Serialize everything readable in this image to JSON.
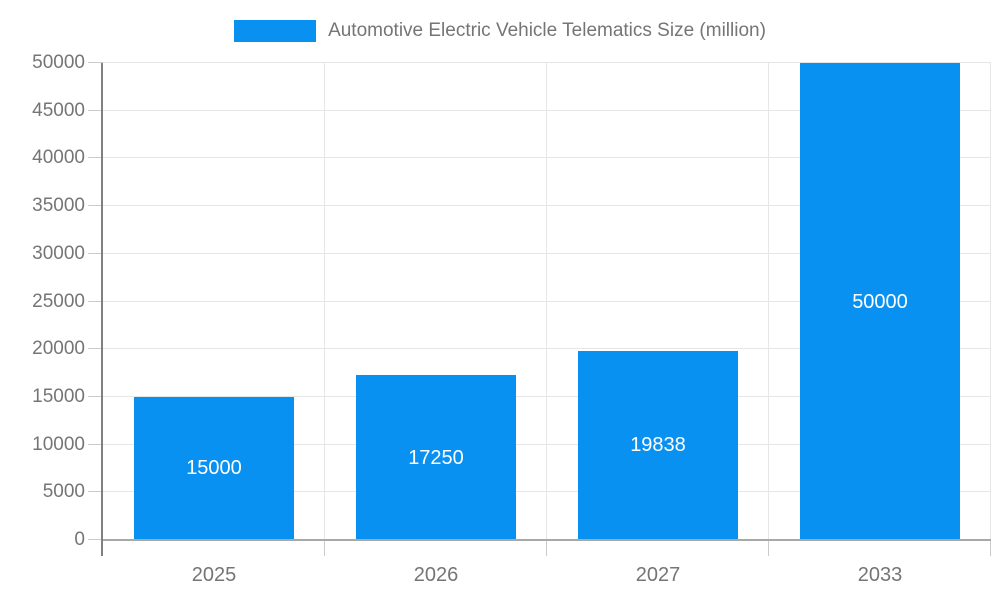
{
  "chart_data": {
    "type": "bar",
    "title": "Automotive Electric Vehicle Telematics Size (million)",
    "categories": [
      "2025",
      "2026",
      "2027",
      "2033"
    ],
    "values": [
      15000,
      17250,
      19838,
      50000
    ],
    "bar_labels": [
      "15000",
      "17250",
      "19838",
      "50000"
    ],
    "xlabel": "",
    "ylabel": "",
    "ylim": [
      0,
      50000
    ],
    "yticks": [
      0,
      5000,
      10000,
      15000,
      20000,
      25000,
      30000,
      35000,
      40000,
      45000,
      50000
    ],
    "grid": true,
    "legend_position": "top",
    "colors": {
      "bar": "#0991f2",
      "bar_label": "#ffffff",
      "axis_text": "#757575",
      "grid_line": "#e6e6e6",
      "y_axis_line": "#808080",
      "x_axis_line": "#a8a8a8",
      "tick": "#cccccc"
    }
  }
}
